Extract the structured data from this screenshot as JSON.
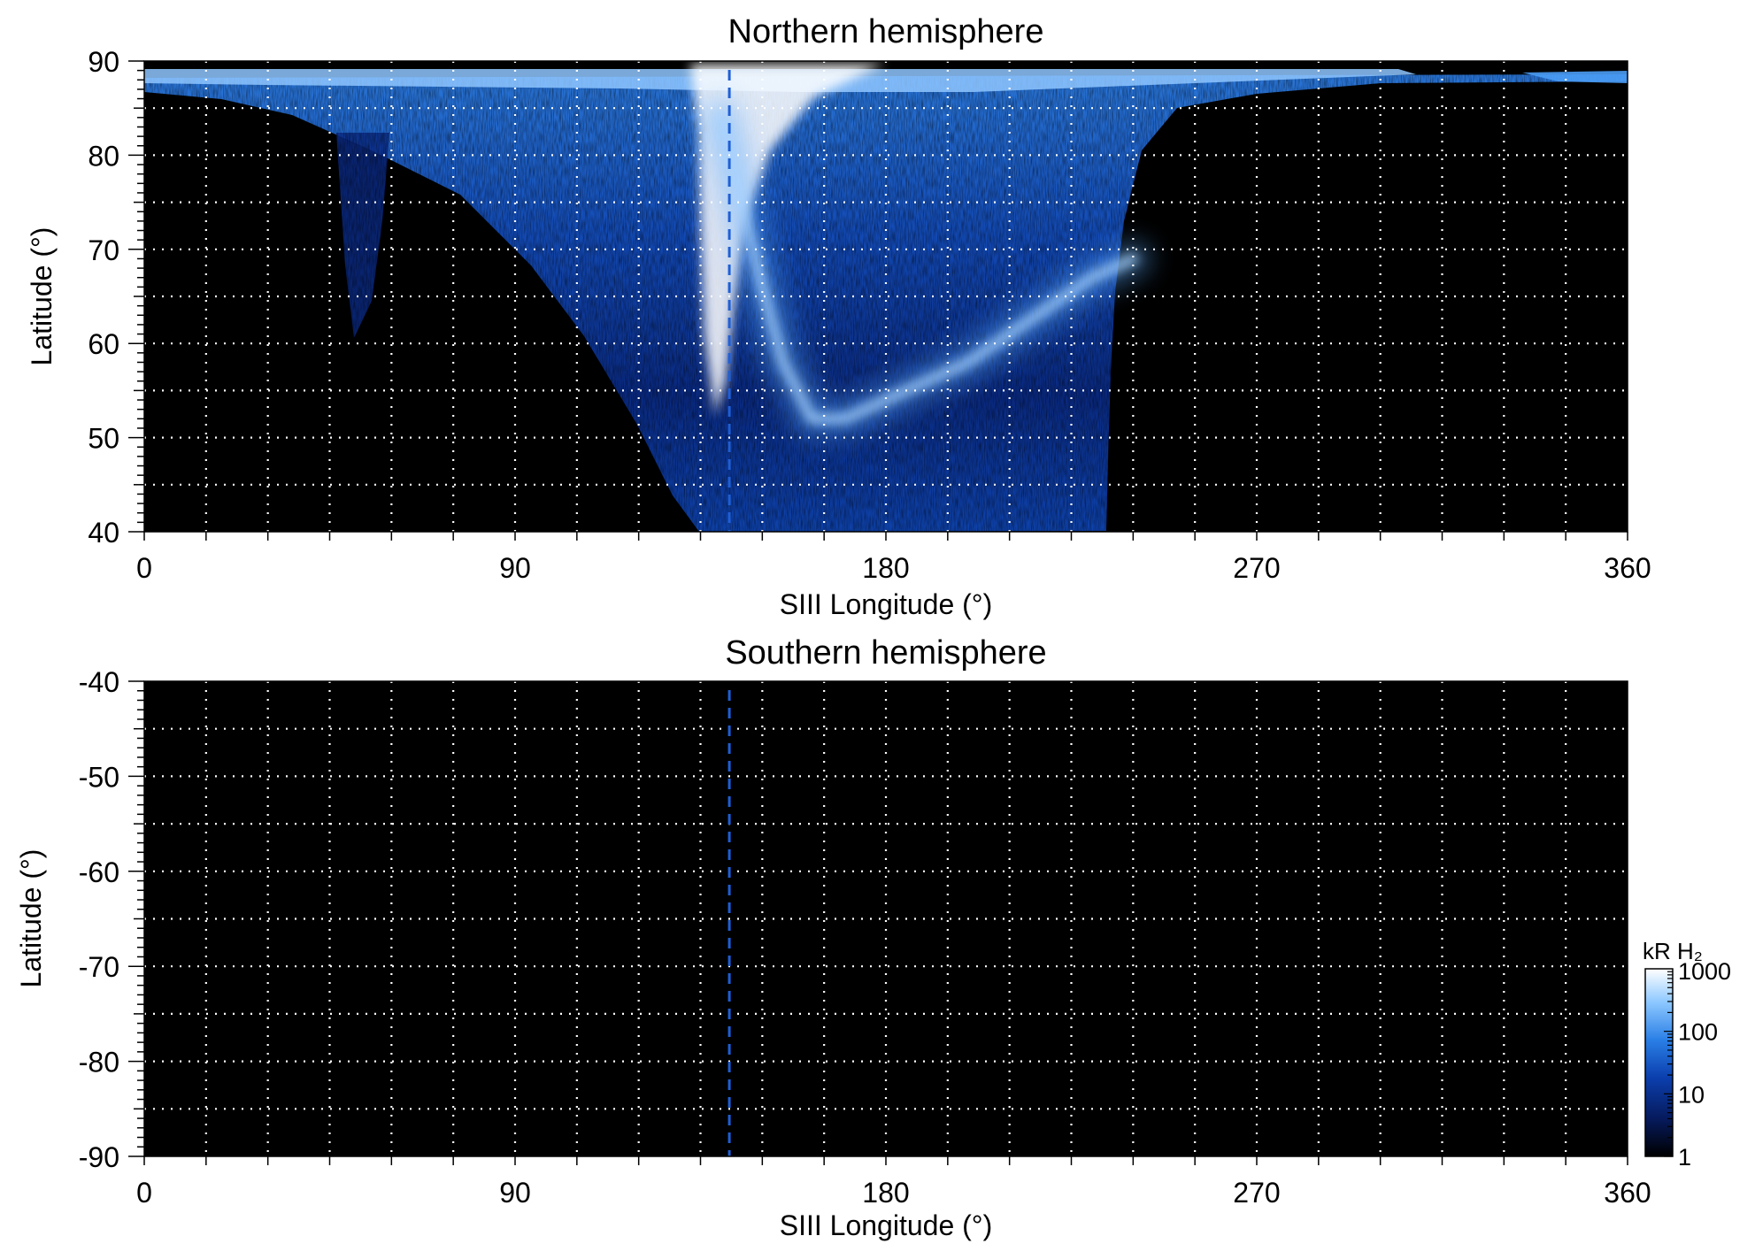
{
  "chart_data": [
    {
      "type": "heatmap",
      "title": "Northern hemisphere",
      "xlabel": "SIII Longitude (°)",
      "ylabel": "Latitude (°)",
      "xlim": [
        0,
        360
      ],
      "ylim": [
        40,
        90
      ],
      "x_ticks": [
        0,
        90,
        180,
        270,
        360
      ],
      "x_tick_labels": [
        "0",
        "90",
        "180",
        "270",
        "360"
      ],
      "y_ticks": [
        40,
        50,
        60,
        70,
        80,
        90
      ],
      "y_tick_labels": [
        "40",
        "50",
        "60",
        "70",
        "80",
        "90"
      ],
      "grid": true,
      "grid_x_step": 15,
      "grid_y_step": 5,
      "reference_line_longitude": 142,
      "reference_line_color": "#1f5fd6",
      "emission_region": {
        "longitude_range": [
          5,
          302
        ],
        "cap_longitudes": [
          340,
          360
        ],
        "oval_track_lon": [
          140,
          145,
          150,
          155,
          162,
          170,
          180,
          190,
          200,
          210,
          220,
          230,
          240
        ],
        "oval_track_lat": [
          84,
          75,
          66,
          58,
          52,
          52,
          54,
          56,
          58,
          61,
          64,
          67,
          69
        ]
      }
    },
    {
      "type": "heatmap",
      "title": "Southern hemisphere",
      "xlabel": "SIII Longitude (°)",
      "ylabel": "Latitude (°)",
      "xlim": [
        0,
        360
      ],
      "ylim": [
        -90,
        -40
      ],
      "x_ticks": [
        0,
        90,
        180,
        270,
        360
      ],
      "x_tick_labels": [
        "0",
        "90",
        "180",
        "270",
        "360"
      ],
      "y_ticks": [
        -90,
        -80,
        -70,
        -60,
        -50,
        -40
      ],
      "y_tick_labels": [
        "-90",
        "-80",
        "-70",
        "-60",
        "-50",
        "-40"
      ],
      "grid": true,
      "grid_x_step": 15,
      "grid_y_step": 5,
      "reference_line_longitude": 142,
      "reference_line_color": "#1f5fd6"
    }
  ],
  "colorbar": {
    "label": "kR H₂",
    "scale": "log",
    "range": [
      1,
      1000
    ],
    "ticks": [
      1,
      10,
      100,
      1000
    ],
    "tick_labels": [
      "1",
      "10",
      "100",
      "1000"
    ],
    "colors": [
      "#000000",
      "#061a5c",
      "#0b3fae",
      "#2a7fe6",
      "#8cc7ff",
      "#ffffff"
    ]
  },
  "colors": {
    "background": "#000000",
    "grid": "#ffffff",
    "emission_dim": "#0a2f8f",
    "emission_mid": "#2f7fe8",
    "emission_bright": "#cfe6ff"
  }
}
